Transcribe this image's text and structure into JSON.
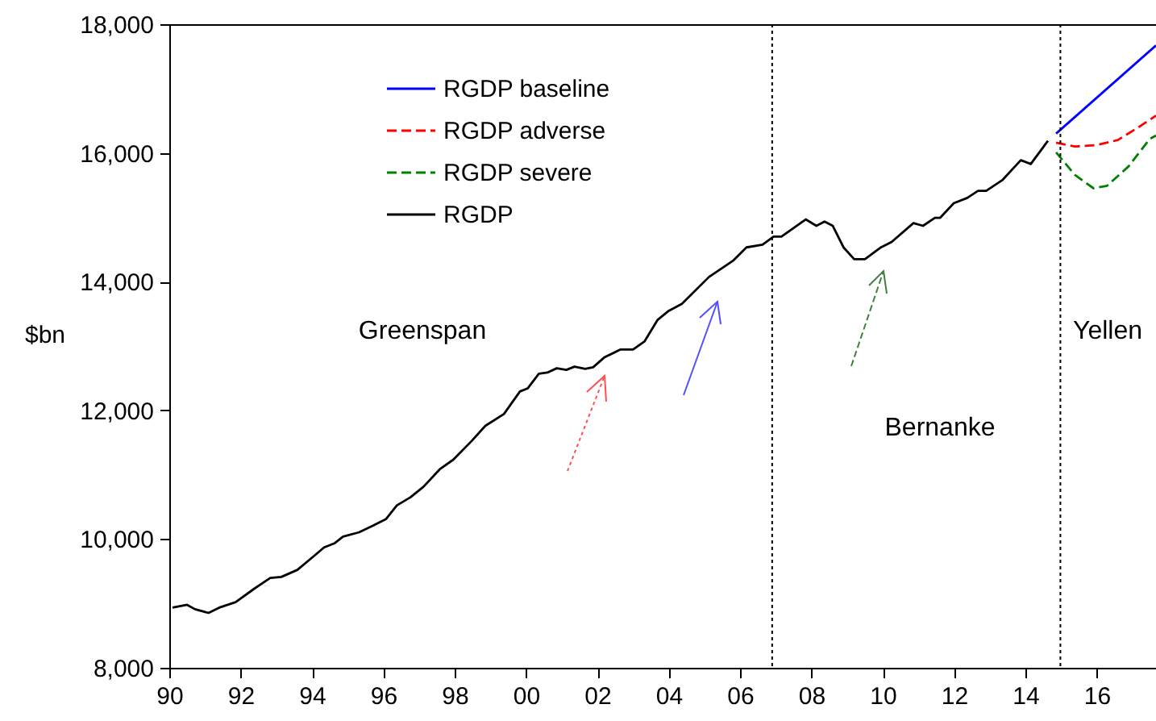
{
  "chart_data": {
    "type": "line",
    "ylabel": "$bn",
    "xlim": [
      1990,
      2017.66
    ],
    "ylim": [
      8000,
      18000
    ],
    "xticks": [
      {
        "value": 1990,
        "label": "90"
      },
      {
        "value": 1992,
        "label": "92"
      },
      {
        "value": 1994,
        "label": "94"
      },
      {
        "value": 1996,
        "label": "96"
      },
      {
        "value": 1998,
        "label": "98"
      },
      {
        "value": 2000,
        "label": "00"
      },
      {
        "value": 2002,
        "label": "02"
      },
      {
        "value": 2004,
        "label": "04"
      },
      {
        "value": 2006,
        "label": "06"
      },
      {
        "value": 2008,
        "label": "08"
      },
      {
        "value": 2010,
        "label": "10"
      },
      {
        "value": 2012,
        "label": "12"
      },
      {
        "value": 2014,
        "label": "14"
      },
      {
        "value": 2016,
        "label": "16"
      }
    ],
    "yticks": [
      {
        "value": 8000,
        "label": "8,000"
      },
      {
        "value": 10000,
        "label": "10,000"
      },
      {
        "value": 12000,
        "label": "12,000"
      },
      {
        "value": 14000,
        "label": "14,000"
      },
      {
        "value": 16000,
        "label": "16,000"
      },
      {
        "value": 18000,
        "label": "18,000"
      }
    ],
    "grid": false,
    "legend": "top left",
    "series": [
      {
        "name": "RGDP baseline",
        "color": "#0000ff",
        "line_style": "solid",
        "x": [
          2014.86,
          2017.66
        ],
        "values": [
          16300,
          17670
        ]
      },
      {
        "name": "RGDP adverse",
        "color": "#ff0000",
        "line_style": "dashed",
        "x": [
          2014.86,
          2015.38,
          2015.99,
          2016.59,
          2017.2,
          2017.66
        ],
        "values": [
          16160,
          16100,
          16120,
          16200,
          16410,
          16580
        ]
      },
      {
        "name": "RGDP severe",
        "color": "#008000",
        "line_style": "dashed",
        "x": [
          2014.86,
          2015.38,
          2015.91,
          2016.29,
          2016.89,
          2017.49,
          2017.66
        ],
        "values": [
          16010,
          15660,
          15450,
          15490,
          15790,
          16220,
          16270
        ]
      },
      {
        "name": "RGDP",
        "color": "#000000",
        "line_style": "solid",
        "x": [
          1990.09,
          1990.5,
          1990.72,
          1991.1,
          1991.4,
          1991.86,
          1992.38,
          1992.83,
          1993.14,
          1993.59,
          1994.04,
          1994.34,
          1994.64,
          1994.87,
          1995.32,
          1995.7,
          1996.08,
          1996.38,
          1996.76,
          1997.13,
          1997.58,
          1997.96,
          1998.48,
          1998.86,
          1999.38,
          1999.83,
          2000.05,
          2000.36,
          2000.6,
          2000.86,
          2001.13,
          2001.36,
          2001.66,
          2001.88,
          2002.19,
          2002.64,
          2003.0,
          2003.32,
          2003.69,
          2004.0,
          2004.37,
          2005.13,
          2005.8,
          2006.18,
          2006.63,
          2006.94,
          2007.16,
          2007.84,
          2008.14,
          2008.37,
          2008.6,
          2008.9,
          2009.2,
          2009.5,
          2009.95,
          2010.25,
          2010.86,
          2011.13,
          2011.46,
          2011.61,
          2011.99,
          2012.37,
          2012.67,
          2012.9,
          2013.35,
          2013.87,
          2014.15,
          2014.63
        ],
        "values": [
          8935,
          8978,
          8910,
          8852,
          8935,
          9020,
          9228,
          9395,
          9411,
          9521,
          9729,
          9871,
          9937,
          10038,
          10105,
          10206,
          10313,
          10523,
          10649,
          10815,
          11083,
          11233,
          11526,
          11759,
          11943,
          12293,
          12343,
          12569,
          12587,
          12654,
          12629,
          12679,
          12644,
          12670,
          12820,
          12945,
          12945,
          13070,
          13406,
          13546,
          13656,
          14073,
          14323,
          14532,
          14574,
          14699,
          14699,
          14967,
          14867,
          14934,
          14867,
          14532,
          14349,
          14349,
          14532,
          14617,
          14909,
          14867,
          14992,
          14992,
          15218,
          15301,
          15411,
          15411,
          15576,
          15887,
          15827,
          16188
        ]
      }
    ],
    "ref_lines": [
      {
        "axis": "x",
        "value": 2006.9,
        "line_style": "dotted"
      },
      {
        "axis": "x",
        "value": 2014.98,
        "line_style": "dotted"
      }
    ],
    "annotations": [
      "Greenspan",
      "Bernanke",
      "Yellen"
    ]
  }
}
